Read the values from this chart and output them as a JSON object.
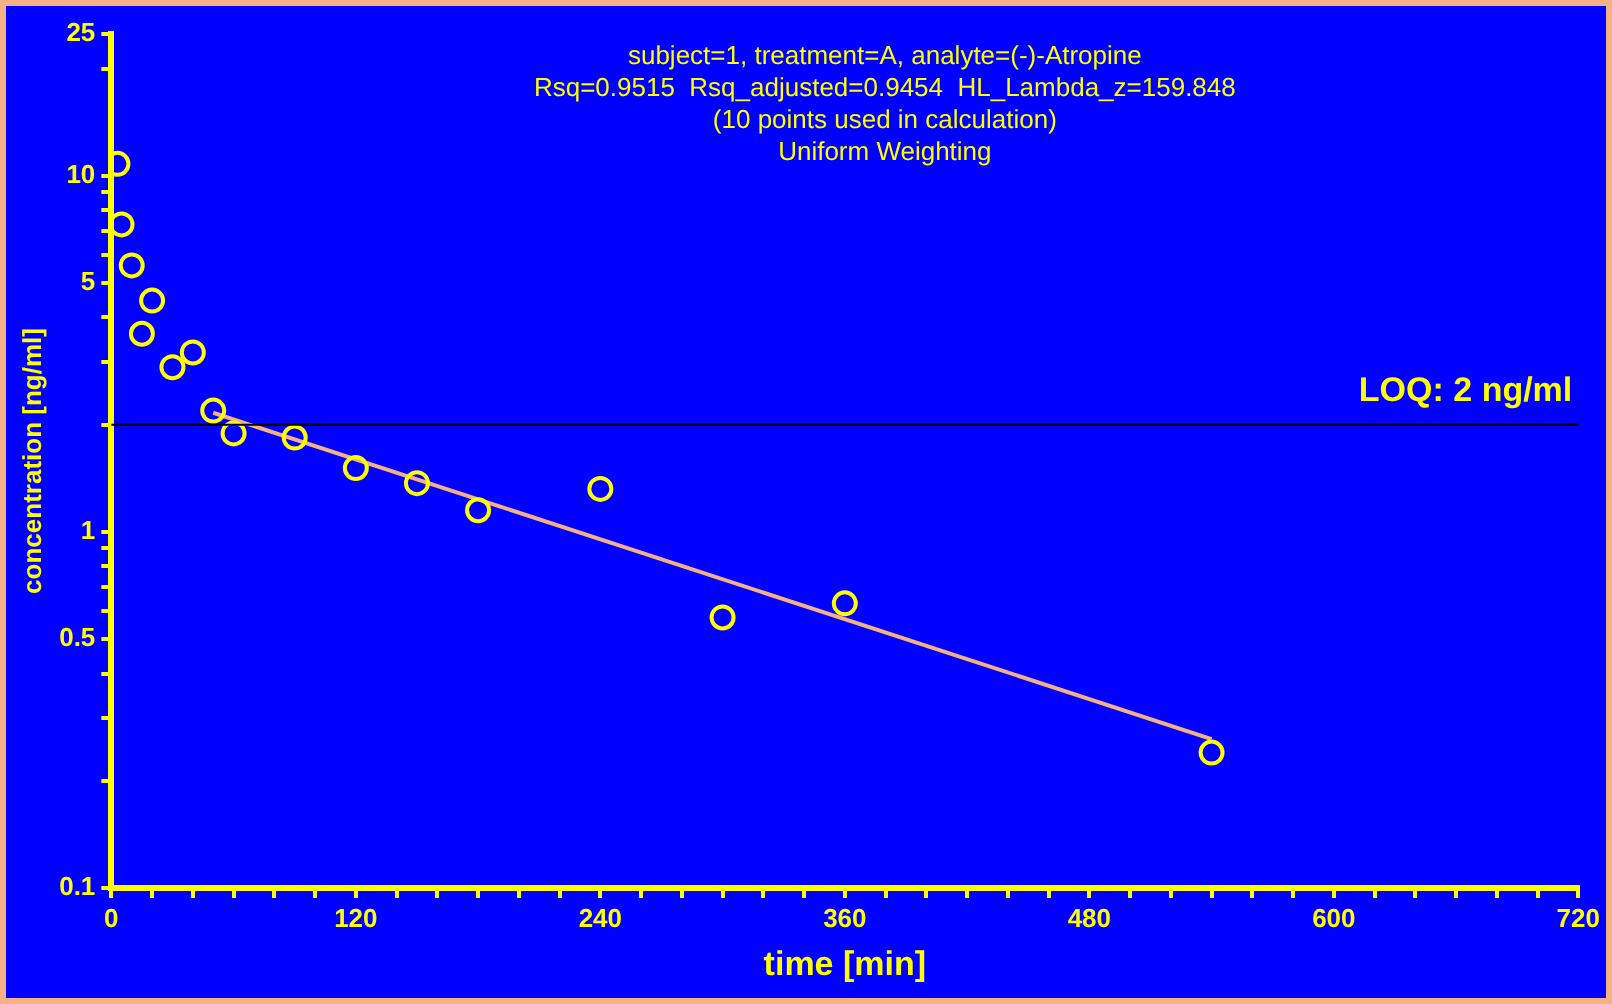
{
  "chart_data": {
    "type": "scatter",
    "title": "subject=1, treatment=A, analyte=(-)-Atropine",
    "subtitle": "Rsq=0.9515  Rsq_adjusted=0.9454  HL_Lambda_z=159.848",
    "annotations": [
      "(10 points used in calculation)",
      "Uniform Weighting"
    ],
    "xlabel": "time [min]",
    "ylabel": "concentration [ng/ml]",
    "xlim": [
      0,
      720
    ],
    "xticks": [
      0,
      {
        "value": 20,
        "label": null
      },
      {
        "value": 40,
        "label": null
      },
      {
        "value": 60,
        "label": null
      },
      {
        "value": 80,
        "label": null
      },
      {
        "value": 100,
        "label": null
      },
      120,
      {
        "value": 140,
        "label": null
      },
      {
        "value": 160,
        "label": null
      },
      {
        "value": 180,
        "label": null
      },
      {
        "value": 200,
        "label": null
      },
      {
        "value": 220,
        "label": null
      },
      240,
      {
        "value": 260,
        "label": null
      },
      {
        "value": 280,
        "label": null
      },
      {
        "value": 300,
        "label": null
      },
      {
        "value": 320,
        "label": null
      },
      {
        "value": 340,
        "label": null
      },
      360,
      {
        "value": 380,
        "label": null
      },
      {
        "value": 400,
        "label": null
      },
      {
        "value": 420,
        "label": null
      },
      {
        "value": 440,
        "label": null
      },
      {
        "value": 460,
        "label": null
      },
      480,
      {
        "value": 500,
        "label": null
      },
      {
        "value": 520,
        "label": null
      },
      {
        "value": 540,
        "label": null
      },
      {
        "value": 560,
        "label": null
      },
      {
        "value": 580,
        "label": null
      },
      600,
      {
        "value": 620,
        "label": null
      },
      {
        "value": 640,
        "label": null
      },
      {
        "value": 660,
        "label": null
      },
      {
        "value": 680,
        "label": null
      },
      {
        "value": 700,
        "label": null
      },
      720
    ],
    "ylim": [
      0.1,
      25
    ],
    "yticks": [
      0.1,
      {
        "value": 0.2,
        "label": null
      },
      {
        "value": 0.3,
        "label": null
      },
      {
        "value": 0.4,
        "label": null
      },
      0.5,
      {
        "value": 0.6,
        "label": null
      },
      {
        "value": 0.7,
        "label": null
      },
      {
        "value": 0.8,
        "label": null
      },
      {
        "value": 0.9,
        "label": null
      },
      1,
      {
        "value": 2,
        "label": null
      },
      {
        "value": 3,
        "label": null
      },
      {
        "value": 4,
        "label": null
      },
      5,
      {
        "value": 6,
        "label": null
      },
      {
        "value": 7,
        "label": null
      },
      {
        "value": 8,
        "label": null
      },
      {
        "value": 9,
        "label": null
      },
      10,
      {
        "value": 20,
        "label": null
      },
      25
    ],
    "log": "y",
    "marker": "circle",
    "ref_lines": [
      {
        "axis": "y",
        "value": 2,
        "label": "LOQ: 2 ng/ml",
        "color": "#000000"
      }
    ],
    "series": [
      {
        "color": "#ffff00",
        "x": [
          3,
          5,
          10,
          15,
          20,
          30,
          40,
          50,
          60,
          90,
          120,
          150,
          180,
          240,
          300,
          360,
          540
        ],
        "values": [
          10.8,
          7.3,
          5.6,
          3.6,
          4.46,
          2.9,
          3.19,
          2.19,
          1.89,
          1.84,
          1.51,
          1.37,
          1.15,
          1.32,
          0.575,
          0.63,
          0.24
        ]
      },
      {
        "type": "line",
        "color": "#f4b183",
        "marker": "none",
        "line_style": "solid",
        "x": [
          50,
          540
        ],
        "values": [
          2.16,
          0.262
        ]
      }
    ]
  }
}
